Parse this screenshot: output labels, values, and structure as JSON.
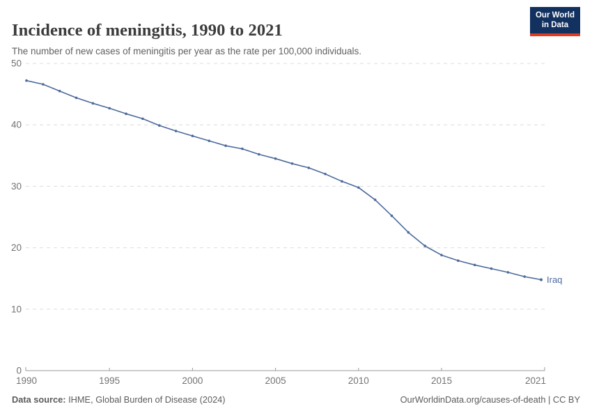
{
  "header": {
    "title": "Incidence of meningitis, 1990 to 2021",
    "subtitle": "The number of new cases of meningitis per year as the rate per 100,000 individuals.",
    "logo": {
      "line1": "Our World",
      "line2": "in Data"
    }
  },
  "chart_data": {
    "type": "line",
    "title": "Incidence of meningitis, 1990 to 2021",
    "x": [
      1990,
      1991,
      1992,
      1993,
      1994,
      1995,
      1996,
      1997,
      1998,
      1999,
      2000,
      2001,
      2002,
      2003,
      2004,
      2005,
      2006,
      2007,
      2008,
      2009,
      2010,
      2011,
      2012,
      2013,
      2014,
      2015,
      2016,
      2017,
      2018,
      2019,
      2020,
      2021
    ],
    "series": [
      {
        "name": "Iraq",
        "values": [
          47.2,
          46.6,
          45.5,
          44.4,
          43.5,
          42.7,
          41.8,
          41.0,
          39.9,
          39.0,
          38.2,
          37.4,
          36.6,
          36.1,
          35.2,
          34.5,
          33.7,
          33.0,
          32.0,
          30.8,
          29.8,
          27.8,
          25.2,
          22.5,
          20.3,
          18.8,
          17.9,
          17.2,
          16.6,
          16.0,
          15.3,
          14.8
        ],
        "color": "#4C6A9C"
      }
    ],
    "xlabel": "",
    "ylabel": "",
    "ylim": [
      0,
      50
    ],
    "y_ticks": [
      0,
      10,
      20,
      30,
      40,
      50
    ],
    "x_ticks": [
      1990,
      1995,
      2000,
      2005,
      2010,
      2015,
      2021
    ],
    "grid": "horizontal-dashed",
    "legend_position": "end-of-line-label",
    "end_label": "Iraq"
  },
  "footer": {
    "source_label": "Data source:",
    "source_text": " IHME, Global Burden of Disease (2024)",
    "credit": "OurWorldinData.org/causes-of-death | CC BY"
  },
  "colors": {
    "line": "#4C6A9C",
    "grid": "#dcdcdc",
    "axis": "#9a9a9a",
    "tick_label": "#737373",
    "logo_bg": "#12315f",
    "logo_stripe": "#e23b22",
    "title": "#3b3b3b",
    "subtitle": "#616161",
    "footer": "#5b5b5b"
  }
}
